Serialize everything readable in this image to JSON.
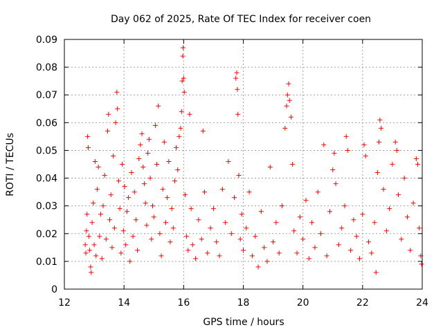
{
  "chart_data": {
    "type": "scatter",
    "title": "Day 062 of 2025, Rate Of TEC Index for receiver coen",
    "xlabel": "GPS time / hours",
    "ylabel": "ROTI / TECUs",
    "xlim": [
      12,
      24
    ],
    "ylim": [
      0,
      0.09
    ],
    "x_ticks": [
      "12",
      "14",
      "16",
      "18",
      "20",
      "22",
      "24"
    ],
    "y_ticks": [
      "0",
      "0.01",
      "0.02",
      "0.03",
      "0.04",
      "0.05",
      "0.06",
      "0.07",
      "0.08",
      "0.09"
    ],
    "grid": true,
    "marker": "+",
    "color": "#ff0000",
    "series": [
      {
        "name": "ROTI",
        "points": [
          [
            12.7,
            0.016
          ],
          [
            12.72,
            0.013
          ],
          [
            12.74,
            0.021
          ],
          [
            12.76,
            0.027
          ],
          [
            12.78,
            0.055
          ],
          [
            12.8,
            0.051
          ],
          [
            12.82,
            0.019
          ],
          [
            12.85,
            0.014
          ],
          [
            12.88,
            0.008
          ],
          [
            12.9,
            0.006
          ],
          [
            12.93,
            0.024
          ],
          [
            12.97,
            0.031
          ],
          [
            13.0,
            0.016
          ],
          [
            13.03,
            0.046
          ],
          [
            13.06,
            0.012
          ],
          [
            13.1,
            0.036
          ],
          [
            13.14,
            0.044
          ],
          [
            13.18,
            0.019
          ],
          [
            13.22,
            0.027
          ],
          [
            13.26,
            0.011
          ],
          [
            13.3,
            0.03
          ],
          [
            13.35,
            0.041
          ],
          [
            13.4,
            0.018
          ],
          [
            13.45,
            0.057
          ],
          [
            13.48,
            0.063
          ],
          [
            13.52,
            0.025
          ],
          [
            13.56,
            0.034
          ],
          [
            13.6,
            0.015
          ],
          [
            13.64,
            0.048
          ],
          [
            13.68,
            0.022
          ],
          [
            13.72,
            0.06
          ],
          [
            13.76,
            0.071
          ],
          [
            13.78,
            0.065
          ],
          [
            13.82,
            0.039
          ],
          [
            13.86,
            0.029
          ],
          [
            13.9,
            0.013
          ],
          [
            13.94,
            0.045
          ],
          [
            13.98,
            0.021
          ],
          [
            14.02,
            0.037
          ],
          [
            14.06,
            0.016
          ],
          [
            14.1,
            0.028
          ],
          [
            14.15,
            0.033
          ],
          [
            14.2,
            0.01
          ],
          [
            14.25,
            0.042
          ],
          [
            14.3,
            0.019
          ],
          [
            14.35,
            0.035
          ],
          [
            14.4,
            0.025
          ],
          [
            14.45,
            0.014
          ],
          [
            14.5,
            0.047
          ],
          [
            14.55,
            0.052
          ],
          [
            14.6,
            0.056
          ],
          [
            14.64,
            0.044
          ],
          [
            14.68,
            0.038
          ],
          [
            14.72,
            0.031
          ],
          [
            14.76,
            0.023
          ],
          [
            14.8,
            0.049
          ],
          [
            14.84,
            0.054
          ],
          [
            14.88,
            0.04
          ],
          [
            14.92,
            0.018
          ],
          [
            14.96,
            0.03
          ],
          [
            15.0,
            0.026
          ],
          [
            15.05,
            0.059
          ],
          [
            15.1,
            0.045
          ],
          [
            15.15,
            0.066
          ],
          [
            15.2,
            0.02
          ],
          [
            15.25,
            0.012
          ],
          [
            15.3,
            0.036
          ],
          [
            15.35,
            0.053
          ],
          [
            15.4,
            0.024
          ],
          [
            15.45,
            0.033
          ],
          [
            15.5,
            0.046
          ],
          [
            15.55,
            0.017
          ],
          [
            15.6,
            0.029
          ],
          [
            15.65,
            0.022
          ],
          [
            15.7,
            0.039
          ],
          [
            15.75,
            0.051
          ],
          [
            15.8,
            0.043
          ],
          [
            15.85,
            0.055
          ],
          [
            15.9,
            0.058
          ],
          [
            15.93,
            0.064
          ],
          [
            15.95,
            0.075
          ],
          [
            15.97,
            0.084
          ],
          [
            15.98,
            0.087
          ],
          [
            16.0,
            0.076
          ],
          [
            16.02,
            0.071
          ],
          [
            16.05,
            0.034
          ],
          [
            16.1,
            0.019
          ],
          [
            16.15,
            0.014
          ],
          [
            16.2,
            0.063
          ],
          [
            16.25,
            0.029
          ],
          [
            16.3,
            0.016
          ],
          [
            16.4,
            0.011
          ],
          [
            16.5,
            0.025
          ],
          [
            16.6,
            0.018
          ],
          [
            16.65,
            0.057
          ],
          [
            16.7,
            0.035
          ],
          [
            16.8,
            0.013
          ],
          [
            16.9,
            0.022
          ],
          [
            17.0,
            0.029
          ],
          [
            17.1,
            0.017
          ],
          [
            17.2,
            0.012
          ],
          [
            17.3,
            0.036
          ],
          [
            17.4,
            0.024
          ],
          [
            17.5,
            0.046
          ],
          [
            17.6,
            0.02
          ],
          [
            17.7,
            0.033
          ],
          [
            17.75,
            0.076
          ],
          [
            17.78,
            0.078
          ],
          [
            17.8,
            0.072
          ],
          [
            17.82,
            0.063
          ],
          [
            17.85,
            0.041
          ],
          [
            17.9,
            0.018
          ],
          [
            17.95,
            0.027
          ],
          [
            18.0,
            0.014
          ],
          [
            18.1,
            0.022
          ],
          [
            18.2,
            0.035
          ],
          [
            18.3,
            0.012
          ],
          [
            18.4,
            0.019
          ],
          [
            18.5,
            0.008
          ],
          [
            18.6,
            0.028
          ],
          [
            18.7,
            0.015
          ],
          [
            18.8,
            0.01
          ],
          [
            18.9,
            0.044
          ],
          [
            19.0,
            0.017
          ],
          [
            19.1,
            0.024
          ],
          [
            19.2,
            0.013
          ],
          [
            19.3,
            0.03
          ],
          [
            19.4,
            0.058
          ],
          [
            19.45,
            0.066
          ],
          [
            19.48,
            0.07
          ],
          [
            19.52,
            0.074
          ],
          [
            19.55,
            0.068
          ],
          [
            19.6,
            0.062
          ],
          [
            19.65,
            0.045
          ],
          [
            19.7,
            0.021
          ],
          [
            19.8,
            0.013
          ],
          [
            19.9,
            0.026
          ],
          [
            20.0,
            0.018
          ],
          [
            20.1,
            0.032
          ],
          [
            20.2,
            0.011
          ],
          [
            20.3,
            0.024
          ],
          [
            20.4,
            0.015
          ],
          [
            20.5,
            0.035
          ],
          [
            20.6,
            0.02
          ],
          [
            20.7,
            0.052
          ],
          [
            20.8,
            0.012
          ],
          [
            20.9,
            0.028
          ],
          [
            21.0,
            0.043
          ],
          [
            21.05,
            0.049
          ],
          [
            21.1,
            0.038
          ],
          [
            21.2,
            0.016
          ],
          [
            21.3,
            0.022
          ],
          [
            21.4,
            0.03
          ],
          [
            21.45,
            0.055
          ],
          [
            21.5,
            0.05
          ],
          [
            21.6,
            0.014
          ],
          [
            21.7,
            0.025
          ],
          [
            21.8,
            0.019
          ],
          [
            21.9,
            0.011
          ],
          [
            22.0,
            0.027
          ],
          [
            22.05,
            0.052
          ],
          [
            22.1,
            0.048
          ],
          [
            22.2,
            0.017
          ],
          [
            22.3,
            0.013
          ],
          [
            22.4,
            0.024
          ],
          [
            22.45,
            0.006
          ],
          [
            22.5,
            0.042
          ],
          [
            22.55,
            0.053
          ],
          [
            22.58,
            0.061
          ],
          [
            22.62,
            0.058
          ],
          [
            22.7,
            0.036
          ],
          [
            22.8,
            0.021
          ],
          [
            22.9,
            0.029
          ],
          [
            23.0,
            0.045
          ],
          [
            23.1,
            0.053
          ],
          [
            23.15,
            0.05
          ],
          [
            23.2,
            0.034
          ],
          [
            23.3,
            0.018
          ],
          [
            23.4,
            0.04
          ],
          [
            23.5,
            0.026
          ],
          [
            23.6,
            0.014
          ],
          [
            23.7,
            0.031
          ],
          [
            23.8,
            0.047
          ],
          [
            23.85,
            0.045
          ],
          [
            23.9,
            0.022
          ],
          [
            23.95,
            0.012
          ],
          [
            23.98,
            0.009
          ]
        ]
      }
    ]
  }
}
